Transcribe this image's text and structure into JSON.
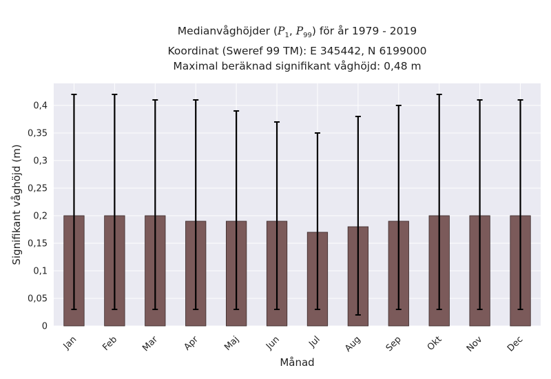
{
  "chart_data": {
    "type": "bar",
    "title_prefix": "Medianvåghöjder (",
    "title_p": "P",
    "title_sub1": "1",
    "title_sep": ", ",
    "title_sub2": "99",
    "title_suffix": ") för år 1979 - 2019",
    "subtitle_1": "Koordinat (Sweref 99 TM): E 345442, N 6199000",
    "subtitle_2": "Maximal beräknad signifikant våghöjd: 0,48 m",
    "xlabel": "Månad",
    "ylabel": "Signifikant våghöjd (m)",
    "categories": [
      "Jan",
      "Feb",
      "Mar",
      "Apr",
      "Maj",
      "Jun",
      "Jul",
      "Aug",
      "Sep",
      "Okt",
      "Nov",
      "Dec"
    ],
    "values": [
      0.2,
      0.2,
      0.2,
      0.19,
      0.19,
      0.19,
      0.17,
      0.18,
      0.19,
      0.2,
      0.2,
      0.2
    ],
    "error_low": [
      0.03,
      0.03,
      0.03,
      0.03,
      0.03,
      0.03,
      0.03,
      0.02,
      0.03,
      0.03,
      0.03,
      0.03
    ],
    "error_high": [
      0.42,
      0.42,
      0.41,
      0.41,
      0.39,
      0.37,
      0.35,
      0.38,
      0.4,
      0.42,
      0.41,
      0.41
    ],
    "ylim": [
      0,
      0.44
    ],
    "yticks": [
      0,
      0.05,
      0.1,
      0.15,
      0.2,
      0.25,
      0.3,
      0.35,
      0.4
    ],
    "ytick_labels": [
      "0",
      "0,05",
      "0,1",
      "0,15",
      "0,2",
      "0,25",
      "0,3",
      "0,35",
      "0,4"
    ],
    "grid": true,
    "colors": {
      "bar": "#7b5a5a",
      "bar_edge": "#3a2a2a",
      "errorbar": "#000000",
      "plot_bg": "#eaeaf2",
      "grid": "#ffffff"
    }
  }
}
